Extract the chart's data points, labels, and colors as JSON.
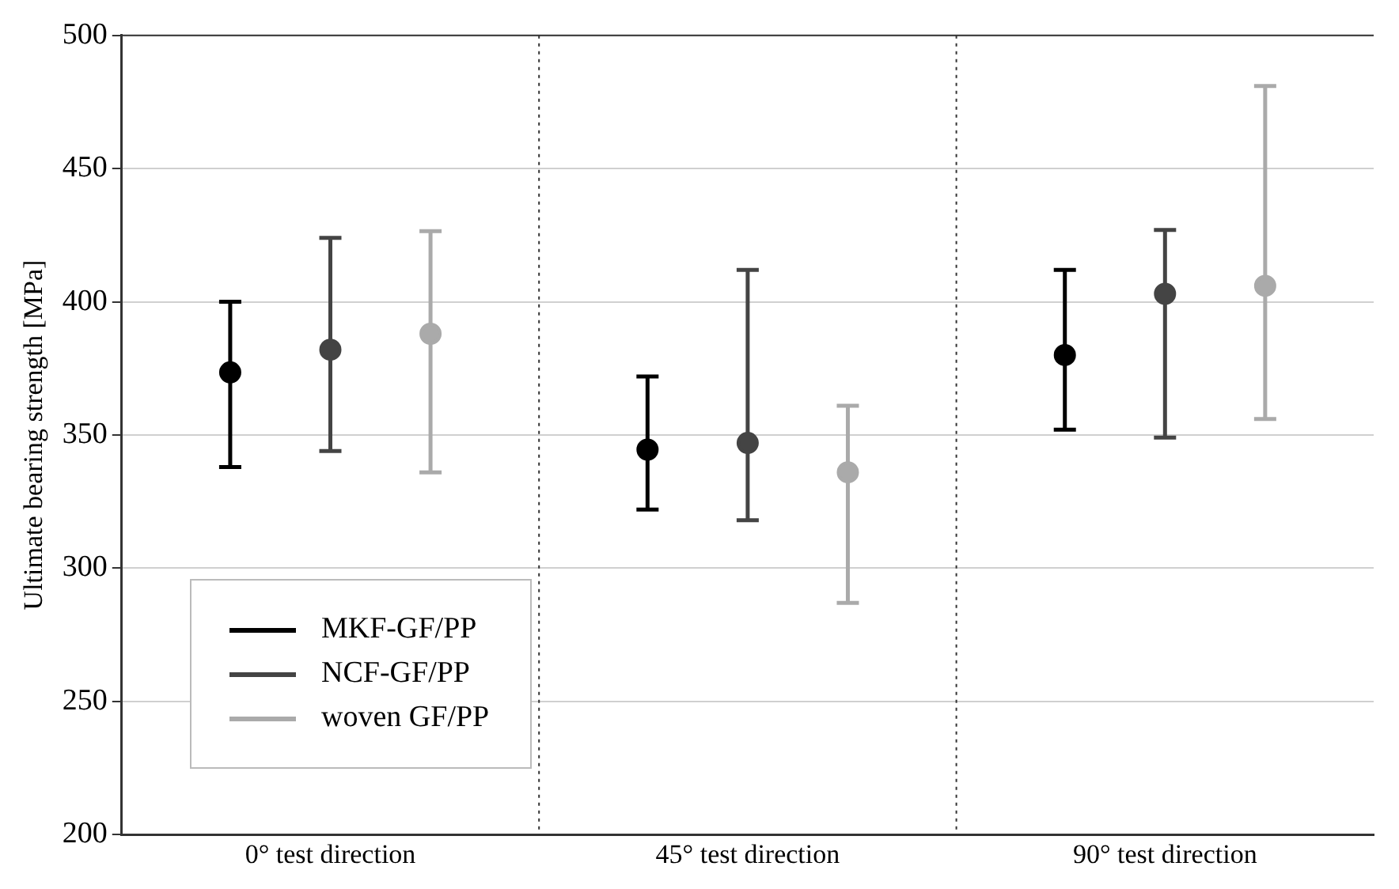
{
  "chart_data": {
    "type": "scatter",
    "ylabel": "Ultimate bearing strength [MPa]",
    "categories": [
      "0° test direction",
      "45° test direction",
      "90° test direction"
    ],
    "series": [
      {
        "name": "MKF-GF/PP",
        "color": "#000000",
        "values": [
          373.5,
          344.5,
          380
        ],
        "errors": [
          [
            338,
            400
          ],
          [
            322,
            372
          ],
          [
            352,
            412
          ]
        ]
      },
      {
        "name": "NCF-GF/PP",
        "color": "#444444",
        "values": [
          382,
          347,
          403
        ],
        "errors": [
          [
            344,
            424
          ],
          [
            318,
            412
          ],
          [
            349,
            427
          ]
        ]
      },
      {
        "name": "woven GF/PP",
        "color": "#aaaaaa",
        "values": [
          388,
          336,
          406
        ],
        "errors": [
          [
            336,
            426.5
          ],
          [
            287,
            361
          ],
          [
            356,
            481
          ]
        ]
      }
    ],
    "ylim": [
      200,
      500
    ],
    "yticks": [
      200,
      250,
      300,
      350,
      400,
      450,
      500
    ],
    "grid": "y",
    "legend": "bottom left",
    "marker": "circle"
  }
}
